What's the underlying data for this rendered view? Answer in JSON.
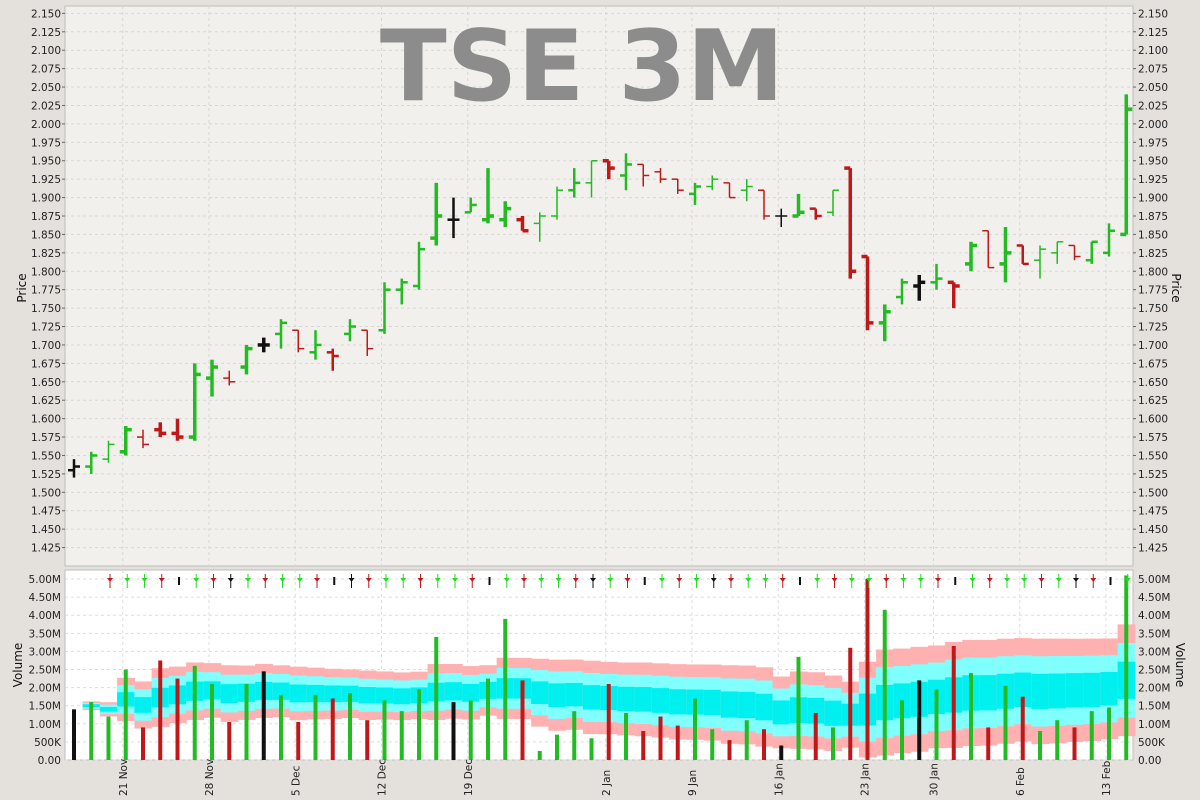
{
  "chart_data": {
    "type": "ohlc_volume",
    "title": "TSE 3M",
    "price_axis": {
      "label": "Price",
      "ylim": [
        1.4,
        2.16
      ],
      "ticks": [
        "2.150",
        "2.125",
        "2.100",
        "2.075",
        "2.050",
        "2.025",
        "2.000",
        "1.975",
        "1.950",
        "1.925",
        "1.900",
        "1.875",
        "1.850",
        "1.825",
        "1.800",
        "1.775",
        "1.750",
        "1.725",
        "1.700",
        "1.675",
        "1.650",
        "1.625",
        "1.600",
        "1.575",
        "1.550",
        "1.525",
        "1.500",
        "1.475",
        "1.450",
        "1.425"
      ]
    },
    "volume_axis": {
      "label": "Volume",
      "ylim": [
        0,
        5.25
      ],
      "unit": "M",
      "ticks": [
        "5.00M",
        "4.50M",
        "4.00M",
        "3.50M",
        "3.00M",
        "2.50M",
        "2.00M",
        "1.50M",
        "1.00M",
        "500K",
        "0.00"
      ]
    },
    "x_labels": [
      "21 Nov",
      "28 Nov",
      "5 Dec",
      "12 Dec",
      "19 Dec",
      "2 Jan",
      "9 Jan",
      "16 Jan",
      "23 Jan",
      "30 Jan",
      "6 Feb",
      "13 Feb"
    ],
    "x_label_index": [
      3,
      8,
      13,
      18,
      23,
      31,
      36,
      41,
      46,
      50,
      55,
      60
    ],
    "colors": {
      "up": "#22bb22",
      "down": "#c01818",
      "flat": "#111111"
    },
    "bars": [
      {
        "o": 1.53,
        "h": 1.545,
        "l": 1.52,
        "c": 1.535,
        "v": 1.4
      },
      {
        "o": 1.535,
        "h": 1.555,
        "l": 1.525,
        "c": 1.55,
        "v": 1.6
      },
      {
        "o": 1.545,
        "h": 1.57,
        "l": 1.54,
        "c": 1.565,
        "v": 1.2
      },
      {
        "o": 1.555,
        "h": 1.59,
        "l": 1.55,
        "c": 1.585,
        "v": 2.5
      },
      {
        "o": 1.575,
        "h": 1.585,
        "l": 1.56,
        "c": 1.565,
        "v": 0.9
      },
      {
        "o": 1.585,
        "h": 1.595,
        "l": 1.575,
        "c": 1.58,
        "v": 2.75
      },
      {
        "o": 1.58,
        "h": 1.6,
        "l": 1.57,
        "c": 1.575,
        "v": 2.25
      },
      {
        "o": 1.575,
        "h": 1.675,
        "l": 1.57,
        "c": 1.66,
        "v": 2.6
      },
      {
        "o": 1.655,
        "h": 1.68,
        "l": 1.63,
        "c": 1.67,
        "v": 2.1
      },
      {
        "o": 1.655,
        "h": 1.665,
        "l": 1.645,
        "c": 1.65,
        "v": 1.05
      },
      {
        "o": 1.67,
        "h": 1.7,
        "l": 1.66,
        "c": 1.695,
        "v": 2.1
      },
      {
        "o": 1.7,
        "h": 1.71,
        "l": 1.69,
        "c": 1.7,
        "v": 2.45
      },
      {
        "o": 1.715,
        "h": 1.735,
        "l": 1.695,
        "c": 1.73,
        "v": 1.8
      },
      {
        "o": 1.72,
        "h": 1.72,
        "l": 1.69,
        "c": 1.695,
        "v": 1.05
      },
      {
        "o": 1.69,
        "h": 1.72,
        "l": 1.68,
        "c": 1.7,
        "v": 1.8
      },
      {
        "o": 1.69,
        "h": 1.695,
        "l": 1.665,
        "c": 1.685,
        "v": 1.7
      },
      {
        "o": 1.715,
        "h": 1.735,
        "l": 1.705,
        "c": 1.725,
        "v": 1.85
      },
      {
        "o": 1.72,
        "h": 1.72,
        "l": 1.685,
        "c": 1.695,
        "v": 1.1
      },
      {
        "o": 1.72,
        "h": 1.785,
        "l": 1.715,
        "c": 1.775,
        "v": 1.65
      },
      {
        "o": 1.775,
        "h": 1.79,
        "l": 1.755,
        "c": 1.785,
        "v": 1.35
      },
      {
        "o": 1.78,
        "h": 1.84,
        "l": 1.775,
        "c": 1.83,
        "v": 1.95
      },
      {
        "o": 1.845,
        "h": 1.92,
        "l": 1.835,
        "c": 1.875,
        "v": 3.4
      },
      {
        "o": 1.87,
        "h": 1.9,
        "l": 1.845,
        "c": 1.87,
        "v": 1.6
      },
      {
        "o": 1.88,
        "h": 1.9,
        "l": 1.88,
        "c": 1.89,
        "v": 1.65
      },
      {
        "o": 1.87,
        "h": 1.94,
        "l": 1.865,
        "c": 1.875,
        "v": 2.25
      },
      {
        "o": 1.87,
        "h": 1.895,
        "l": 1.86,
        "c": 1.885,
        "v": 3.9
      },
      {
        "o": 1.87,
        "h": 1.875,
        "l": 1.855,
        "c": 1.855,
        "v": 2.2
      },
      {
        "o": 1.865,
        "h": 1.88,
        "l": 1.84,
        "c": 1.875,
        "v": 0.25
      },
      {
        "o": 1.875,
        "h": 1.915,
        "l": 1.87,
        "c": 1.91,
        "v": 0.7
      },
      {
        "o": 1.91,
        "h": 1.94,
        "l": 1.9,
        "c": 1.92,
        "v": 1.35
      },
      {
        "o": 1.92,
        "h": 1.95,
        "l": 1.9,
        "c": 1.95,
        "v": 0.6
      },
      {
        "o": 1.95,
        "h": 1.95,
        "l": 1.925,
        "c": 1.94,
        "v": 2.1
      },
      {
        "o": 1.93,
        "h": 1.96,
        "l": 1.91,
        "c": 1.945,
        "v": 1.3
      },
      {
        "o": 1.945,
        "h": 1.945,
        "l": 1.915,
        "c": 1.93,
        "v": 0.8
      },
      {
        "o": 1.935,
        "h": 1.94,
        "l": 1.92,
        "c": 1.925,
        "v": 1.2
      },
      {
        "o": 1.925,
        "h": 1.925,
        "l": 1.905,
        "c": 1.91,
        "v": 0.95
      },
      {
        "o": 1.905,
        "h": 1.92,
        "l": 1.89,
        "c": 1.915,
        "v": 1.7
      },
      {
        "o": 1.915,
        "h": 1.93,
        "l": 1.91,
        "c": 1.925,
        "v": 0.85
      },
      {
        "o": 1.92,
        "h": 1.92,
        "l": 1.9,
        "c": 1.9,
        "v": 0.55
      },
      {
        "o": 1.91,
        "h": 1.925,
        "l": 1.895,
        "c": 1.915,
        "v": 1.1
      },
      {
        "o": 1.91,
        "h": 1.91,
        "l": 1.87,
        "c": 1.875,
        "v": 0.85
      },
      {
        "o": 1.875,
        "h": 1.885,
        "l": 1.86,
        "c": 1.875,
        "v": 0.4
      },
      {
        "o": 1.875,
        "h": 1.905,
        "l": 1.875,
        "c": 1.88,
        "v": 2.85
      },
      {
        "o": 1.885,
        "h": 1.885,
        "l": 1.87,
        "c": 1.875,
        "v": 1.3
      },
      {
        "o": 1.88,
        "h": 1.91,
        "l": 1.875,
        "c": 1.91,
        "v": 0.9
      },
      {
        "o": 1.94,
        "h": 1.94,
        "l": 1.79,
        "c": 1.8,
        "v": 3.1
      },
      {
        "o": 1.82,
        "h": 1.82,
        "l": 1.72,
        "c": 1.73,
        "v": 5.0
      },
      {
        "o": 1.73,
        "h": 1.755,
        "l": 1.705,
        "c": 1.745,
        "v": 4.15
      },
      {
        "o": 1.765,
        "h": 1.79,
        "l": 1.755,
        "c": 1.785,
        "v": 1.65
      },
      {
        "o": 1.78,
        "h": 1.795,
        "l": 1.76,
        "c": 1.785,
        "v": 2.2
      },
      {
        "o": 1.785,
        "h": 1.81,
        "l": 1.775,
        "c": 1.79,
        "v": 1.95
      },
      {
        "o": 1.785,
        "h": 1.785,
        "l": 1.75,
        "c": 1.78,
        "v": 3.15
      },
      {
        "o": 1.81,
        "h": 1.84,
        "l": 1.8,
        "c": 1.835,
        "v": 2.4
      },
      {
        "o": 1.855,
        "h": 1.855,
        "l": 1.805,
        "c": 1.805,
        "v": 0.9
      },
      {
        "o": 1.81,
        "h": 1.86,
        "l": 1.785,
        "c": 1.825,
        "v": 2.05
      },
      {
        "o": 1.835,
        "h": 1.835,
        "l": 1.81,
        "c": 1.81,
        "v": 1.75
      },
      {
        "o": 1.815,
        "h": 1.835,
        "l": 1.79,
        "c": 1.83,
        "v": 0.8
      },
      {
        "o": 1.825,
        "h": 1.84,
        "l": 1.81,
        "c": 1.84,
        "v": 1.1
      },
      {
        "o": 1.835,
        "h": 1.835,
        "l": 1.815,
        "c": 1.82,
        "v": 0.9
      },
      {
        "o": 1.815,
        "h": 1.84,
        "l": 1.81,
        "c": 1.84,
        "v": 1.35
      },
      {
        "o": 1.825,
        "h": 1.865,
        "l": 1.82,
        "c": 1.855,
        "v": 1.45
      },
      {
        "o": 1.85,
        "h": 2.04,
        "l": 1.85,
        "c": 2.02,
        "v": 5.1
      }
    ]
  }
}
